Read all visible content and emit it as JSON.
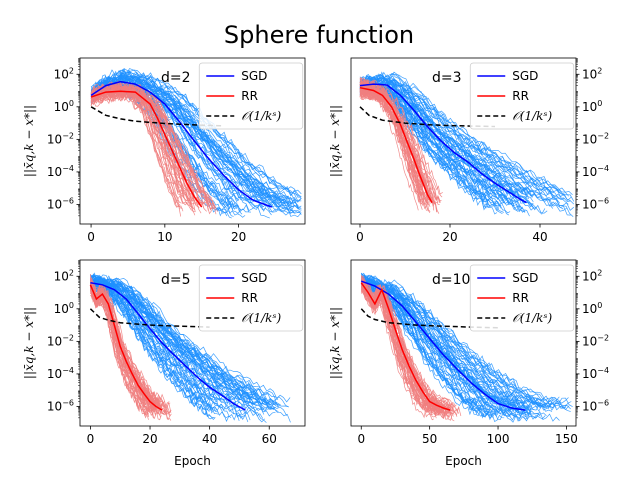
{
  "title": "Sphere function",
  "ylabel": "||x̄q,k − x*||",
  "xlabel": "Epoch",
  "colors": {
    "sgd_mean": "#0000ff",
    "rr_mean": "#ff0000",
    "sgd_runs": "#1e90ff",
    "rr_runs": "#f08080",
    "ref": "#000000"
  },
  "legend": {
    "sgd": "SGD",
    "rr": "RR",
    "ref": "𝒪(1/kˢ)"
  },
  "chart_data": [
    {
      "type": "line",
      "annotation": "d=2",
      "yscale": "log",
      "xlim": [
        -1.5,
        29
      ],
      "ylim_exp": [
        -7.2,
        3
      ],
      "xticks": [
        0,
        10,
        20
      ],
      "yticks_exp": [
        2,
        0,
        -2,
        -4,
        -6
      ],
      "ytick_side": "left",
      "show_xlabel": false,
      "series": [
        {
          "name": "SGD",
          "x": [
            0,
            2,
            4,
            6,
            8,
            10,
            12,
            14,
            16,
            18,
            20,
            22,
            24.5
          ],
          "y": [
            5,
            20,
            35,
            25,
            8,
            1.5,
            0.12,
            0.008,
            0.0006,
            6e-05,
            8e-06,
            1.8e-06,
            7e-07
          ]
        },
        {
          "name": "RR",
          "x": [
            0,
            2,
            4,
            6,
            8,
            9,
            10,
            11,
            12,
            13,
            14,
            15
          ],
          "y": [
            4,
            8,
            9,
            8,
            1.5,
            0.2,
            0.02,
            0.002,
            0.0002,
            2e-05,
            3e-06,
            7e-07
          ]
        },
        {
          "name": "𝒪(1/kˢ)",
          "x": [
            0,
            2,
            4,
            6,
            8,
            10,
            12,
            14,
            16,
            18
          ],
          "y": [
            1,
            0.3,
            0.18,
            0.13,
            0.11,
            0.095,
            0.085,
            0.078,
            0.072,
            0.068
          ]
        }
      ]
    },
    {
      "type": "line",
      "annotation": "d=3",
      "yscale": "log",
      "xlim": [
        -2,
        48
      ],
      "ylim_exp": [
        -7.2,
        3
      ],
      "xticks": [
        0,
        20,
        40
      ],
      "yticks_exp": [
        2,
        0,
        -2,
        -4,
        -6
      ],
      "ytick_side": "right",
      "show_xlabel": false,
      "series": [
        {
          "name": "SGD",
          "x": [
            0,
            3,
            6,
            9,
            12,
            15,
            18,
            21,
            24,
            27,
            30,
            33,
            36,
            37
          ],
          "y": [
            20,
            25,
            22,
            5,
            0.6,
            0.06,
            0.008,
            0.0015,
            0.0004,
            8e-05,
            2e-05,
            6e-06,
            1.8e-06,
            1.3e-06
          ]
        },
        {
          "name": "RR",
          "x": [
            0,
            3,
            5,
            7,
            9,
            10,
            11,
            12,
            13,
            14,
            15,
            16
          ],
          "y": [
            15,
            10,
            5,
            1,
            0.08,
            0.015,
            0.003,
            0.0006,
            0.0001,
            2e-05,
            4e-06,
            1.3e-06
          ]
        },
        {
          "name": "𝒪(1/kˢ)",
          "x": [
            0,
            2,
            5,
            10,
            15,
            20,
            25,
            30
          ],
          "y": [
            1,
            0.3,
            0.15,
            0.1,
            0.08,
            0.07,
            0.065,
            0.062
          ]
        }
      ]
    },
    {
      "type": "line",
      "annotation": "d=5",
      "yscale": "log",
      "xlim": [
        -3.5,
        72
      ],
      "ylim_exp": [
        -7.2,
        3
      ],
      "xticks": [
        0,
        20,
        40,
        60
      ],
      "yticks_exp": [
        2,
        0,
        -2,
        -4,
        -6
      ],
      "ytick_side": "left",
      "show_xlabel": true,
      "series": [
        {
          "name": "SGD",
          "x": [
            0,
            4,
            8,
            12,
            16,
            20,
            24,
            28,
            32,
            36,
            40,
            44,
            48,
            52
          ],
          "y": [
            40,
            30,
            15,
            4,
            0.5,
            0.06,
            0.008,
            0.0015,
            0.0003,
            6e-05,
            1.5e-05,
            5e-06,
            1.5e-06,
            6e-07
          ]
        },
        {
          "name": "RR",
          "x": [
            0,
            2,
            4,
            6,
            8,
            10,
            12,
            14,
            16,
            18,
            20,
            22,
            24
          ],
          "y": [
            30,
            4,
            8,
            2,
            0.1,
            0.005,
            0.0006,
            0.0001,
            2e-05,
            6e-06,
            2e-06,
            1e-06,
            6e-07
          ]
        },
        {
          "name": "𝒪(1/kˢ)",
          "x": [
            0,
            3,
            6,
            10,
            20,
            30,
            40
          ],
          "y": [
            1,
            0.3,
            0.2,
            0.14,
            0.1,
            0.085,
            0.075
          ]
        }
      ]
    },
    {
      "type": "line",
      "annotation": "d=10",
      "yscale": "log",
      "xlim": [
        -7.5,
        157
      ],
      "ylim_exp": [
        -7.2,
        3
      ],
      "xticks": [
        0,
        50,
        100,
        150
      ],
      "yticks_exp": [
        2,
        0,
        -2,
        -4,
        -6
      ],
      "ytick_side": "right",
      "show_xlabel": true,
      "series": [
        {
          "name": "SGD",
          "x": [
            0,
            10,
            20,
            30,
            40,
            50,
            60,
            70,
            80,
            90,
            100,
            110,
            120
          ],
          "y": [
            50,
            25,
            8,
            1.5,
            0.15,
            0.015,
            0.0015,
            0.0002,
            3e-05,
            6e-06,
            1.5e-06,
            8e-07,
            6e-07
          ]
        },
        {
          "name": "RR",
          "x": [
            0,
            5,
            10,
            15,
            20,
            25,
            30,
            35,
            40,
            45,
            50,
            55,
            60,
            65
          ],
          "y": [
            40,
            10,
            2,
            15,
            1,
            0.05,
            0.003,
            0.0003,
            4e-05,
            8e-06,
            2e-06,
            1.2e-06,
            8e-07,
            6e-07
          ]
        },
        {
          "name": "𝒪(1/kˢ)",
          "x": [
            0,
            5,
            10,
            20,
            40,
            60,
            80,
            100
          ],
          "y": [
            1,
            0.35,
            0.22,
            0.14,
            0.1,
            0.085,
            0.075,
            0.068
          ]
        }
      ]
    }
  ]
}
